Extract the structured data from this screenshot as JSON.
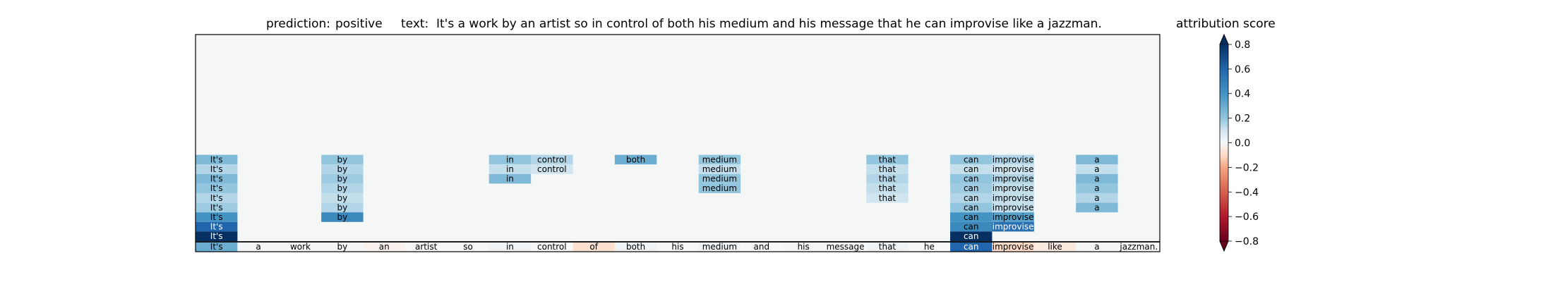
{
  "header": {
    "prediction_label": "prediction:",
    "prediction_value": "positive",
    "text_label": "text:",
    "text_value": "It's a work by an artist so in control of both his medium and his message that he can improvise like a jazzman."
  },
  "colorbar": {
    "title": "attribution score",
    "ticks": [
      "0.8",
      "0.6",
      "0.4",
      "0.2",
      "0.0",
      "−0.2",
      "−0.4",
      "−0.6",
      "−0.8"
    ],
    "range": [
      -0.8,
      0.8
    ],
    "colormap": "RdBu",
    "colors": {
      "neg_end": "#67001f",
      "neg_mid": "#d6604d",
      "neg_light": "#fddbc7",
      "neutral": "#f7f7f7",
      "pos_light": "#d1e5f0",
      "pos_mid": "#4393c3",
      "pos_end": "#053061"
    }
  },
  "chart_data": {
    "type": "heatmap",
    "title": "prediction:  positive     text:  It's a work by an artist so in control of both his medium and his message that he can improvise like a jazzman.",
    "tokens": [
      "It's",
      "a",
      "work",
      "by",
      "an",
      "artist",
      "so",
      "in",
      "control",
      "of",
      "both",
      "his",
      "medium",
      "and",
      "his",
      "message",
      "that",
      "he",
      "can",
      "improvise",
      "like",
      "a",
      "jazzman."
    ],
    "background_color": "#f5f6f6",
    "base_row_scores": [
      0.3,
      0.01,
      0.01,
      0.01,
      -0.02,
      0.0,
      0.0,
      0.02,
      0.0,
      -0.08,
      0.02,
      0.0,
      0.02,
      0.0,
      0.01,
      0.0,
      0.02,
      0.0,
      0.6,
      -0.1,
      -0.05,
      0.01,
      0.0
    ],
    "stacked_rows": [
      {
        "It's": 0.25,
        "by": 0.2,
        "in": 0.2,
        "control": 0.15,
        "both": 0.3,
        "medium": 0.2,
        "that": 0.2,
        "can": 0.2,
        "improvise": 0.15,
        "a": 0.25
      },
      {
        "It's": 0.15,
        "by": 0.15,
        "in": 0.12,
        "control": 0.1,
        "medium": 0.12,
        "that": 0.12,
        "can": 0.12,
        "improvise": 0.1,
        "a": 0.12
      },
      {
        "It's": 0.25,
        "by": 0.18,
        "in": 0.25,
        "medium": 0.2,
        "that": 0.15,
        "can": 0.2,
        "improvise": 0.15,
        "a": 0.25
      },
      {
        "It's": 0.2,
        "by": 0.15,
        "medium": 0.2,
        "that": 0.12,
        "can": 0.18,
        "improvise": 0.12,
        "a": 0.2
      },
      {
        "It's": 0.15,
        "by": 0.12,
        "that": 0.1,
        "can": 0.15,
        "improvise": 0.12,
        "a": 0.15
      },
      {
        "It's": 0.18,
        "by": 0.15,
        "can": 0.2,
        "improvise": 0.12,
        "a": 0.25
      },
      {
        "It's": 0.4,
        "by": 0.45,
        "can": 0.4,
        "improvise": 0.35
      },
      {
        "It's": 0.6,
        "can": 0.45,
        "improvise": 0.55
      },
      {
        "It's": 0.8,
        "can": 0.8
      }
    ]
  }
}
